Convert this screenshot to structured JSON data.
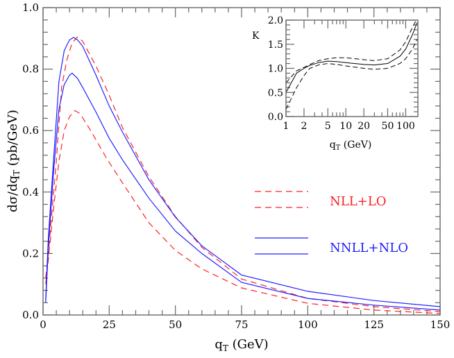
{
  "chart_data": [
    {
      "type": "line",
      "xlabel": "qT (GeV)",
      "ylabel": "dσ/dqT (pb/GeV)",
      "xlim": [
        0,
        150
      ],
      "ylim": [
        0,
        1.0
      ],
      "xticks": [
        "0",
        "25",
        "50",
        "75",
        "100",
        "125",
        "150"
      ],
      "yticks": [
        "0.0",
        "0.2",
        "0.4",
        "0.6",
        "0.8",
        "1.0"
      ],
      "grid": false,
      "legend_placement": "center-right",
      "series": [
        {
          "name": "NLL+LO",
          "group": "NLL+LO",
          "color": "#ff2020",
          "style": "dashed",
          "x": [
            1,
            2,
            4,
            5,
            7,
            9,
            11,
            13,
            15,
            20,
            25,
            30,
            40,
            50,
            60,
            75,
            100,
            125,
            150
          ],
          "y": [
            0.12,
            0.2,
            0.4,
            0.5,
            0.74,
            0.83,
            0.885,
            0.905,
            0.89,
            0.81,
            0.715,
            0.61,
            0.45,
            0.32,
            0.22,
            0.117,
            0.054,
            0.027,
            0.011
          ]
        },
        {
          "name": "NLL+LO",
          "group": "NLL+LO",
          "color": "#ff2020",
          "style": "dashed",
          "x": [
            1,
            2,
            4,
            6,
            8,
            10,
            12,
            14,
            18,
            24,
            30,
            40,
            50,
            60,
            75,
            100,
            125,
            150
          ],
          "y": [
            0.1,
            0.18,
            0.35,
            0.5,
            0.6,
            0.645,
            0.665,
            0.655,
            0.6,
            0.51,
            0.43,
            0.3,
            0.21,
            0.15,
            0.088,
            0.038,
            0.016,
            0.005
          ]
        },
        {
          "name": "NNLL+NLO",
          "group": "NNLL+NLO",
          "color": "#2020ff",
          "style": "solid",
          "x": [
            1,
            2,
            4,
            6,
            8,
            10,
            11.5,
            13,
            15,
            20,
            25,
            30,
            40,
            50,
            60,
            75,
            100,
            125,
            150
          ],
          "y": [
            0.05,
            0.25,
            0.51,
            0.76,
            0.86,
            0.895,
            0.903,
            0.895,
            0.874,
            0.78,
            0.68,
            0.595,
            0.44,
            0.318,
            0.225,
            0.13,
            0.077,
            0.047,
            0.027
          ]
        },
        {
          "name": "NNLL+NLO",
          "group": "NNLL+NLO",
          "color": "#2020ff",
          "style": "solid",
          "x": [
            1,
            2,
            4,
            6,
            8,
            10,
            11,
            13,
            15,
            20,
            25,
            30,
            40,
            50,
            60,
            75,
            100,
            125,
            150
          ],
          "y": [
            0.04,
            0.22,
            0.47,
            0.67,
            0.75,
            0.78,
            0.787,
            0.77,
            0.74,
            0.66,
            0.575,
            0.505,
            0.38,
            0.273,
            0.2,
            0.106,
            0.054,
            0.032,
            0.016
          ]
        }
      ],
      "legend": [
        {
          "label": "NLL+LO",
          "color": "#ff2020"
        },
        {
          "label": "NNLL+NLO",
          "color": "#2020ff"
        }
      ]
    },
    {
      "type": "line",
      "xlabel": "qT (GeV)",
      "ylabel": "K",
      "xscale": "log",
      "xlim": [
        1,
        160
      ],
      "ylim": [
        0,
        2.0
      ],
      "xticks": [
        "1",
        "2",
        "5",
        "10",
        "20",
        "50",
        "100"
      ],
      "xtick_values": [
        1,
        2,
        5,
        10,
        20,
        50,
        100
      ],
      "yticks": [
        "0.0",
        "0.5",
        "1.0",
        "1.5",
        "2.0"
      ],
      "grid": false,
      "series": [
        {
          "color": "#000000",
          "style": "solid",
          "x": [
            1,
            1.5,
            2,
            2.5,
            3.5,
            5,
            7,
            10,
            20,
            30,
            50,
            80,
            100,
            130,
            155
          ],
          "y": [
            0.5,
            0.9,
            1.0,
            1.06,
            1.12,
            1.15,
            1.14,
            1.12,
            1.08,
            1.07,
            1.1,
            1.25,
            1.4,
            1.7,
            1.95
          ]
        },
        {
          "color": "#000000",
          "style": "dashed",
          "x": [
            1,
            1.5,
            2,
            2.5,
            3.5,
            5,
            7,
            10,
            20,
            30,
            50,
            80,
            100,
            130,
            150
          ],
          "y": [
            0.7,
            0.95,
            1.02,
            1.08,
            1.16,
            1.2,
            1.22,
            1.22,
            1.18,
            1.16,
            1.2,
            1.38,
            1.55,
            1.85,
            2.0
          ]
        },
        {
          "color": "#000000",
          "style": "dashed",
          "x": [
            1,
            1.5,
            2,
            2.5,
            3.5,
            5,
            7,
            10,
            20,
            30,
            50,
            80,
            100,
            130,
            155
          ],
          "y": [
            0.15,
            0.6,
            0.85,
            1.0,
            1.07,
            1.1,
            1.08,
            1.05,
            1.0,
            0.98,
            1.0,
            1.1,
            1.2,
            1.4,
            1.6
          ]
        }
      ]
    }
  ]
}
